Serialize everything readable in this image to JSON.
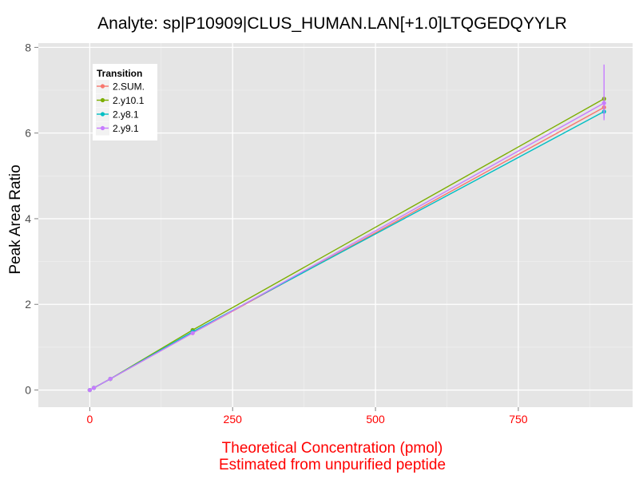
{
  "chart_data": {
    "type": "line",
    "title": "Analyte: sp|P10909|CLUS_HUMAN.LAN[+1.0]LTQGEDQYYLR",
    "xlabel": [
      "Theoretical Concentration (pmol)",
      "Estimated from unpurified peptide"
    ],
    "ylabel": "Peak Area Ratio",
    "xlim": [
      -90,
      950
    ],
    "ylim": [
      -0.4,
      8.1
    ],
    "xticks": [
      0,
      250,
      500,
      750
    ],
    "yticks": [
      0,
      2,
      4,
      6,
      8
    ],
    "xtick_labels": [
      "0",
      "250",
      "500",
      "750"
    ],
    "ytick_labels": [
      "0",
      "2",
      "4",
      "6",
      "8"
    ],
    "grid": true,
    "legend": {
      "title": "Transition",
      "placement": "top-left inside"
    },
    "series": [
      {
        "name": "2.SUM.",
        "color": "#F8766D",
        "x": [
          0,
          7.2,
          36,
          180,
          900
        ],
        "y": [
          0.0,
          0.05,
          0.26,
          1.33,
          6.6
        ],
        "error_at_900": [
          6.45,
          6.75
        ]
      },
      {
        "name": "2.y10.1",
        "color": "#7CAE00",
        "x": [
          0,
          7.2,
          36,
          180,
          900
        ],
        "y": [
          0.0,
          0.05,
          0.26,
          1.4,
          6.8
        ],
        "error_at_900": [
          6.7,
          6.85
        ]
      },
      {
        "name": "2.y8.1",
        "color": "#00BFC4",
        "x": [
          0,
          7.2,
          36,
          180,
          900
        ],
        "y": [
          0.0,
          0.05,
          0.26,
          1.36,
          6.5
        ],
        "error_at_900": [
          6.35,
          6.6
        ]
      },
      {
        "name": "2.y9.1",
        "color": "#C77CFF",
        "x": [
          0,
          7.2,
          36,
          180,
          900
        ],
        "y": [
          0.0,
          0.05,
          0.26,
          1.33,
          6.7
        ],
        "error_at_900": [
          6.3,
          7.6
        ]
      }
    ]
  }
}
